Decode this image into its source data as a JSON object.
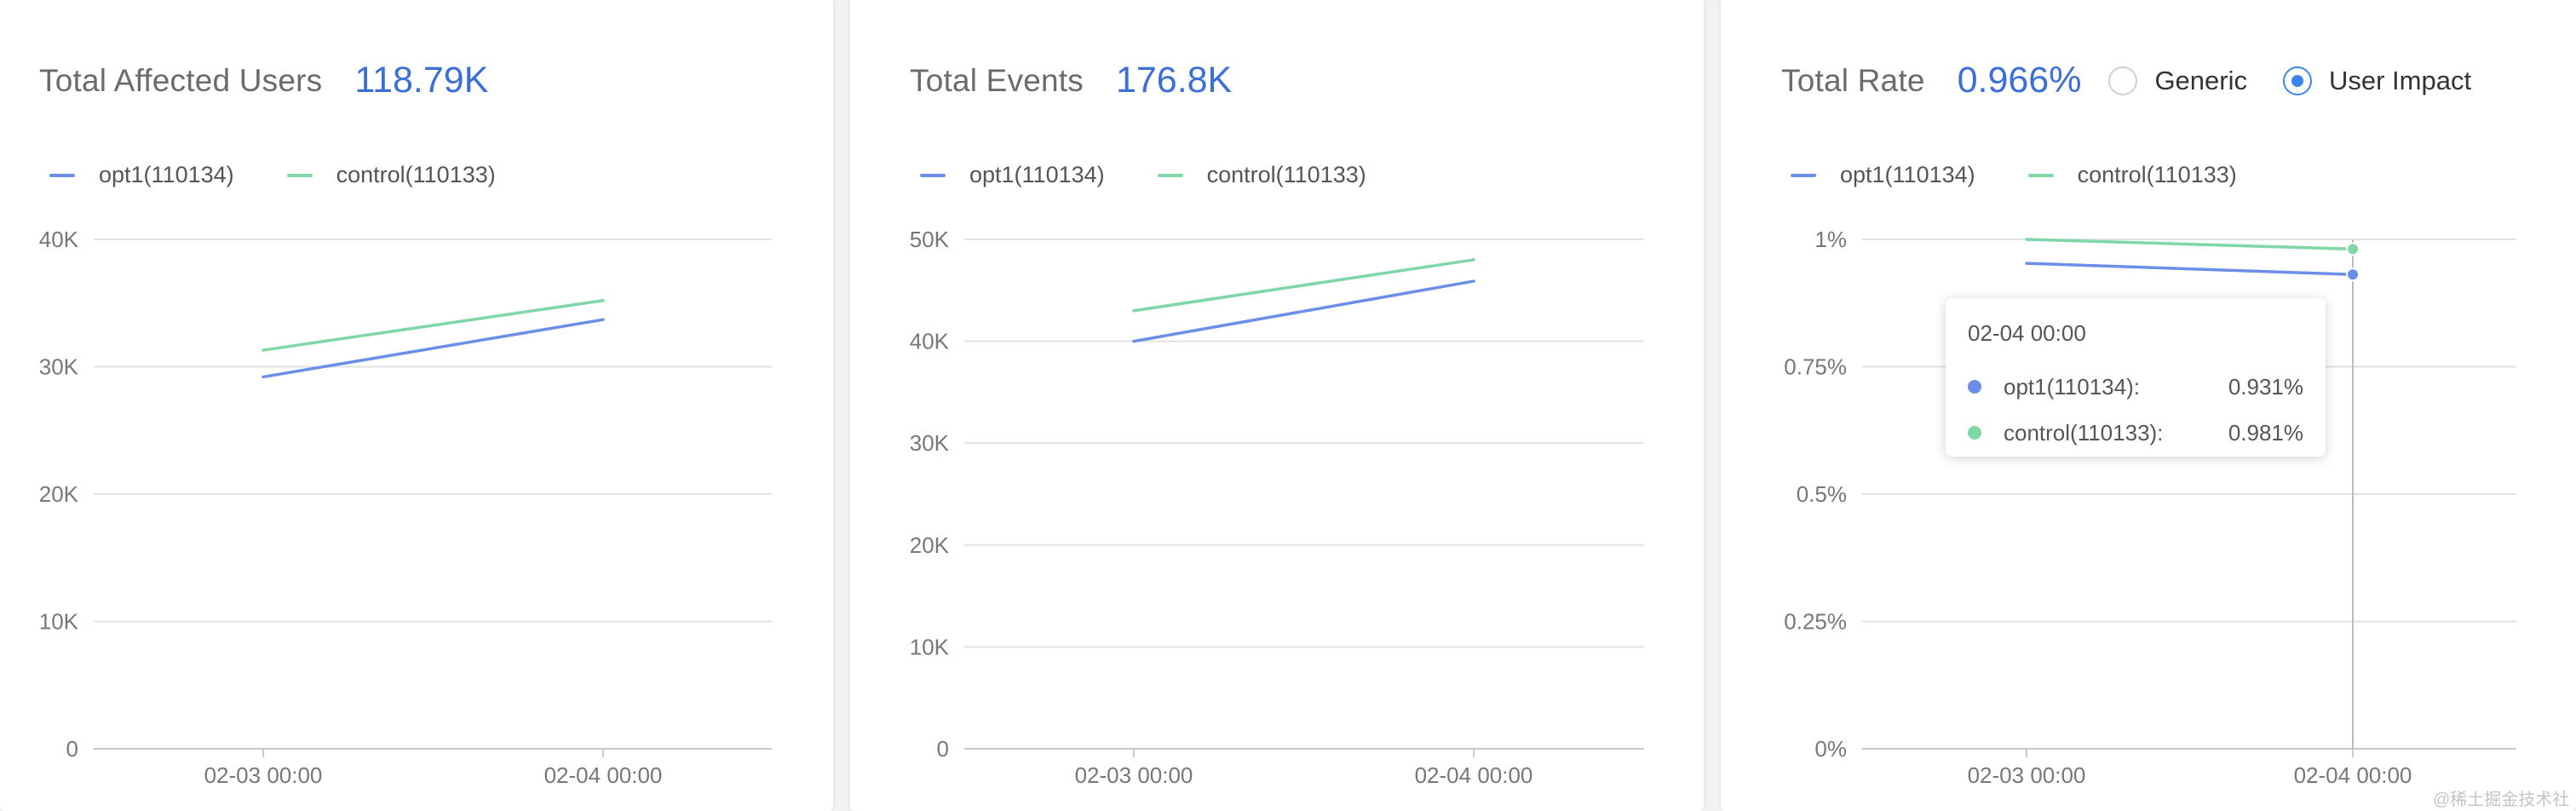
{
  "panels": [
    {
      "label": "Total Affected Users",
      "value": "118.79K",
      "legend": [
        {
          "name": "opt1(110134)",
          "color": "#6b8fe8"
        },
        {
          "name": "control(110133)",
          "color": "#7fd6a6"
        }
      ]
    },
    {
      "label": "Total Events",
      "value": "176.8K",
      "legend": [
        {
          "name": "opt1(110134)",
          "color": "#6b8fe8"
        },
        {
          "name": "control(110133)",
          "color": "#7fd6a6"
        }
      ]
    },
    {
      "label": "Total Rate",
      "value": "0.966%",
      "radio": [
        {
          "label": "Generic",
          "checked": false
        },
        {
          "label": "User Impact",
          "checked": true
        }
      ],
      "legend": [
        {
          "name": "opt1(110134)",
          "color": "#6b8fe8"
        },
        {
          "name": "control(110133)",
          "color": "#7fd6a6"
        }
      ],
      "tooltip": {
        "title": "02-04 00:00",
        "rows": [
          {
            "name": "opt1(110134):",
            "value": "0.931%",
            "color": "#6b8fe8"
          },
          {
            "name": "control(110133):",
            "value": "0.981%",
            "color": "#7fd6a6"
          }
        ]
      }
    }
  ],
  "chart_data": [
    {
      "type": "line",
      "title": "Total Affected Users",
      "categories": [
        "02-03 00:00",
        "02-04 00:00"
      ],
      "series": [
        {
          "name": "opt1(110134)",
          "values": [
            29200,
            33700
          ],
          "color": "#6b8fe8"
        },
        {
          "name": "control(110133)",
          "values": [
            31300,
            35200
          ],
          "color": "#7fd6a6"
        }
      ],
      "ylim": [
        0,
        40000
      ],
      "yticks": [
        0,
        10000,
        20000,
        30000,
        40000
      ],
      "yticklabels": [
        "0",
        "10K",
        "20K",
        "30K",
        "40K"
      ],
      "grid": true
    },
    {
      "type": "line",
      "title": "Total Events",
      "categories": [
        "02-03 00:00",
        "02-04 00:00"
      ],
      "series": [
        {
          "name": "opt1(110134)",
          "values": [
            40000,
            45900
          ],
          "color": "#6b8fe8"
        },
        {
          "name": "control(110133)",
          "values": [
            43000,
            48000
          ],
          "color": "#7fd6a6"
        }
      ],
      "ylim": [
        0,
        50000
      ],
      "yticks": [
        0,
        10000,
        20000,
        30000,
        40000,
        50000
      ],
      "yticklabels": [
        "0",
        "10K",
        "20K",
        "30K",
        "40K",
        "50K"
      ],
      "grid": true
    },
    {
      "type": "line",
      "title": "Total Rate",
      "categories": [
        "02-03 00:00",
        "02-04 00:00"
      ],
      "series": [
        {
          "name": "opt1(110134)",
          "values": [
            0.953,
            0.931
          ],
          "color": "#6b8fe8"
        },
        {
          "name": "control(110133)",
          "values": [
            1.0,
            0.981
          ],
          "color": "#7fd6a6"
        }
      ],
      "ylim": [
        0,
        1
      ],
      "yticks": [
        0,
        0.25,
        0.5,
        0.75,
        1
      ],
      "yticklabels": [
        "0%",
        "0.25%",
        "0.5%",
        "0.75%",
        "1%"
      ],
      "grid": true,
      "highlight_index": 1
    }
  ],
  "watermark": "@稀土掘金技术社区"
}
